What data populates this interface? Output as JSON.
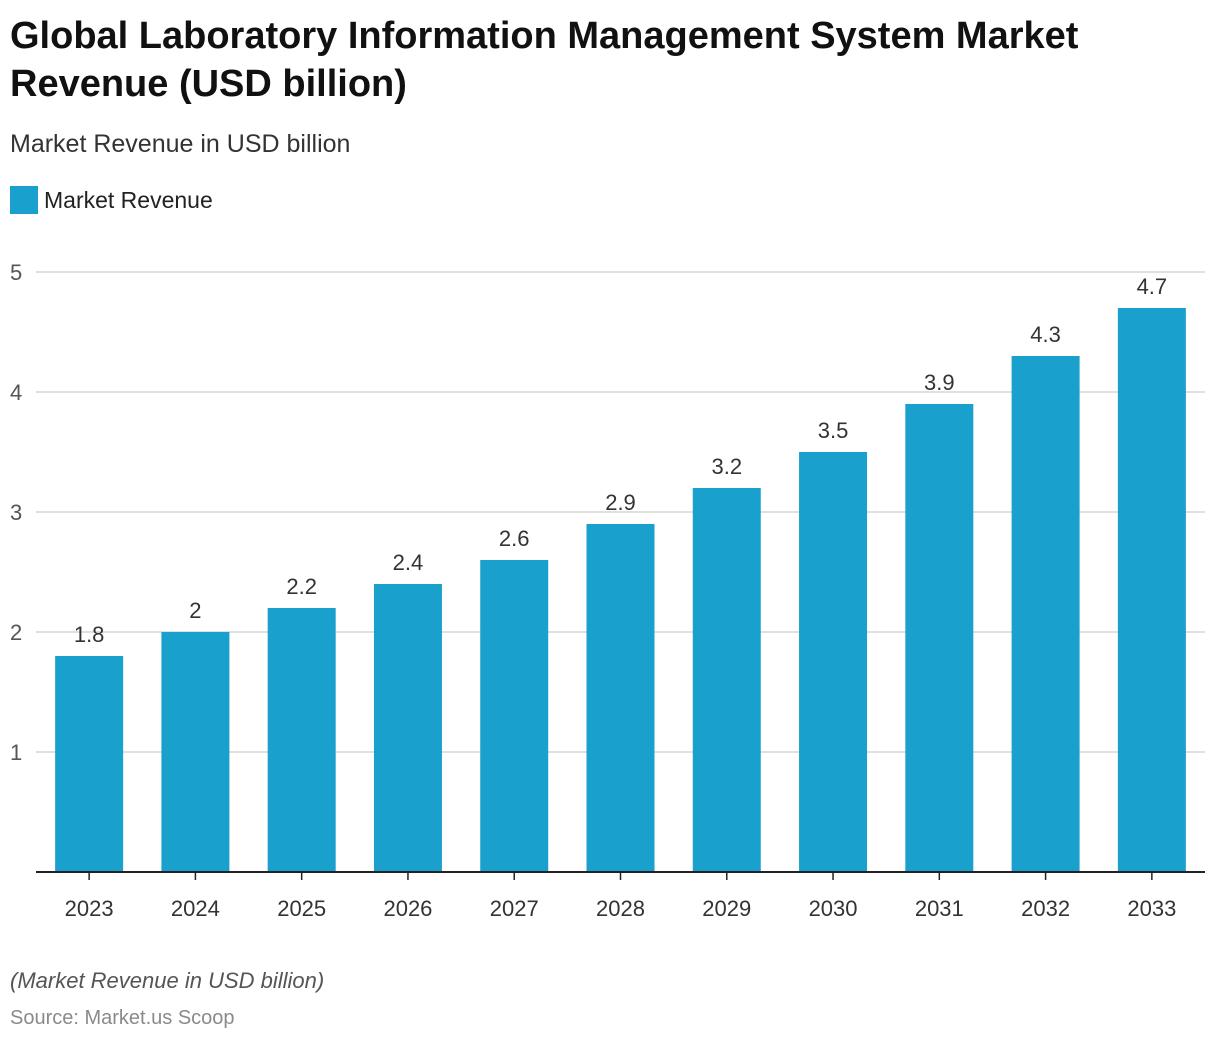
{
  "title": "Global Laboratory Information Management System Market Revenue (USD billion)",
  "subtitle": "Market Revenue in USD billion",
  "footnote": "(Market Revenue in USD billion)",
  "source": "Source: Market.us Scoop",
  "colors": {
    "bar": "#1aa0cc",
    "grid": "#d6d6d6",
    "axis": "#222222",
    "tick_text": "#555555"
  },
  "chart_data": {
    "type": "bar",
    "categories": [
      "2023",
      "2024",
      "2025",
      "2026",
      "2027",
      "2028",
      "2029",
      "2030",
      "2031",
      "2032",
      "2033"
    ],
    "series": [
      {
        "name": "Market Revenue",
        "values": [
          1.8,
          2,
          2.2,
          2.4,
          2.6,
          2.9,
          3.2,
          3.5,
          3.9,
          4.3,
          4.7
        ],
        "labels": [
          "1.8",
          "2",
          "2.2",
          "2.4",
          "2.6",
          "2.9",
          "3.2",
          "3.5",
          "3.9",
          "4.3",
          "4.7"
        ]
      }
    ],
    "ylim": [
      0,
      5
    ],
    "yticks": [
      1,
      2,
      3,
      4,
      5
    ],
    "grid": true,
    "legend": "top-left",
    "xlabel": "",
    "ylabel": ""
  }
}
